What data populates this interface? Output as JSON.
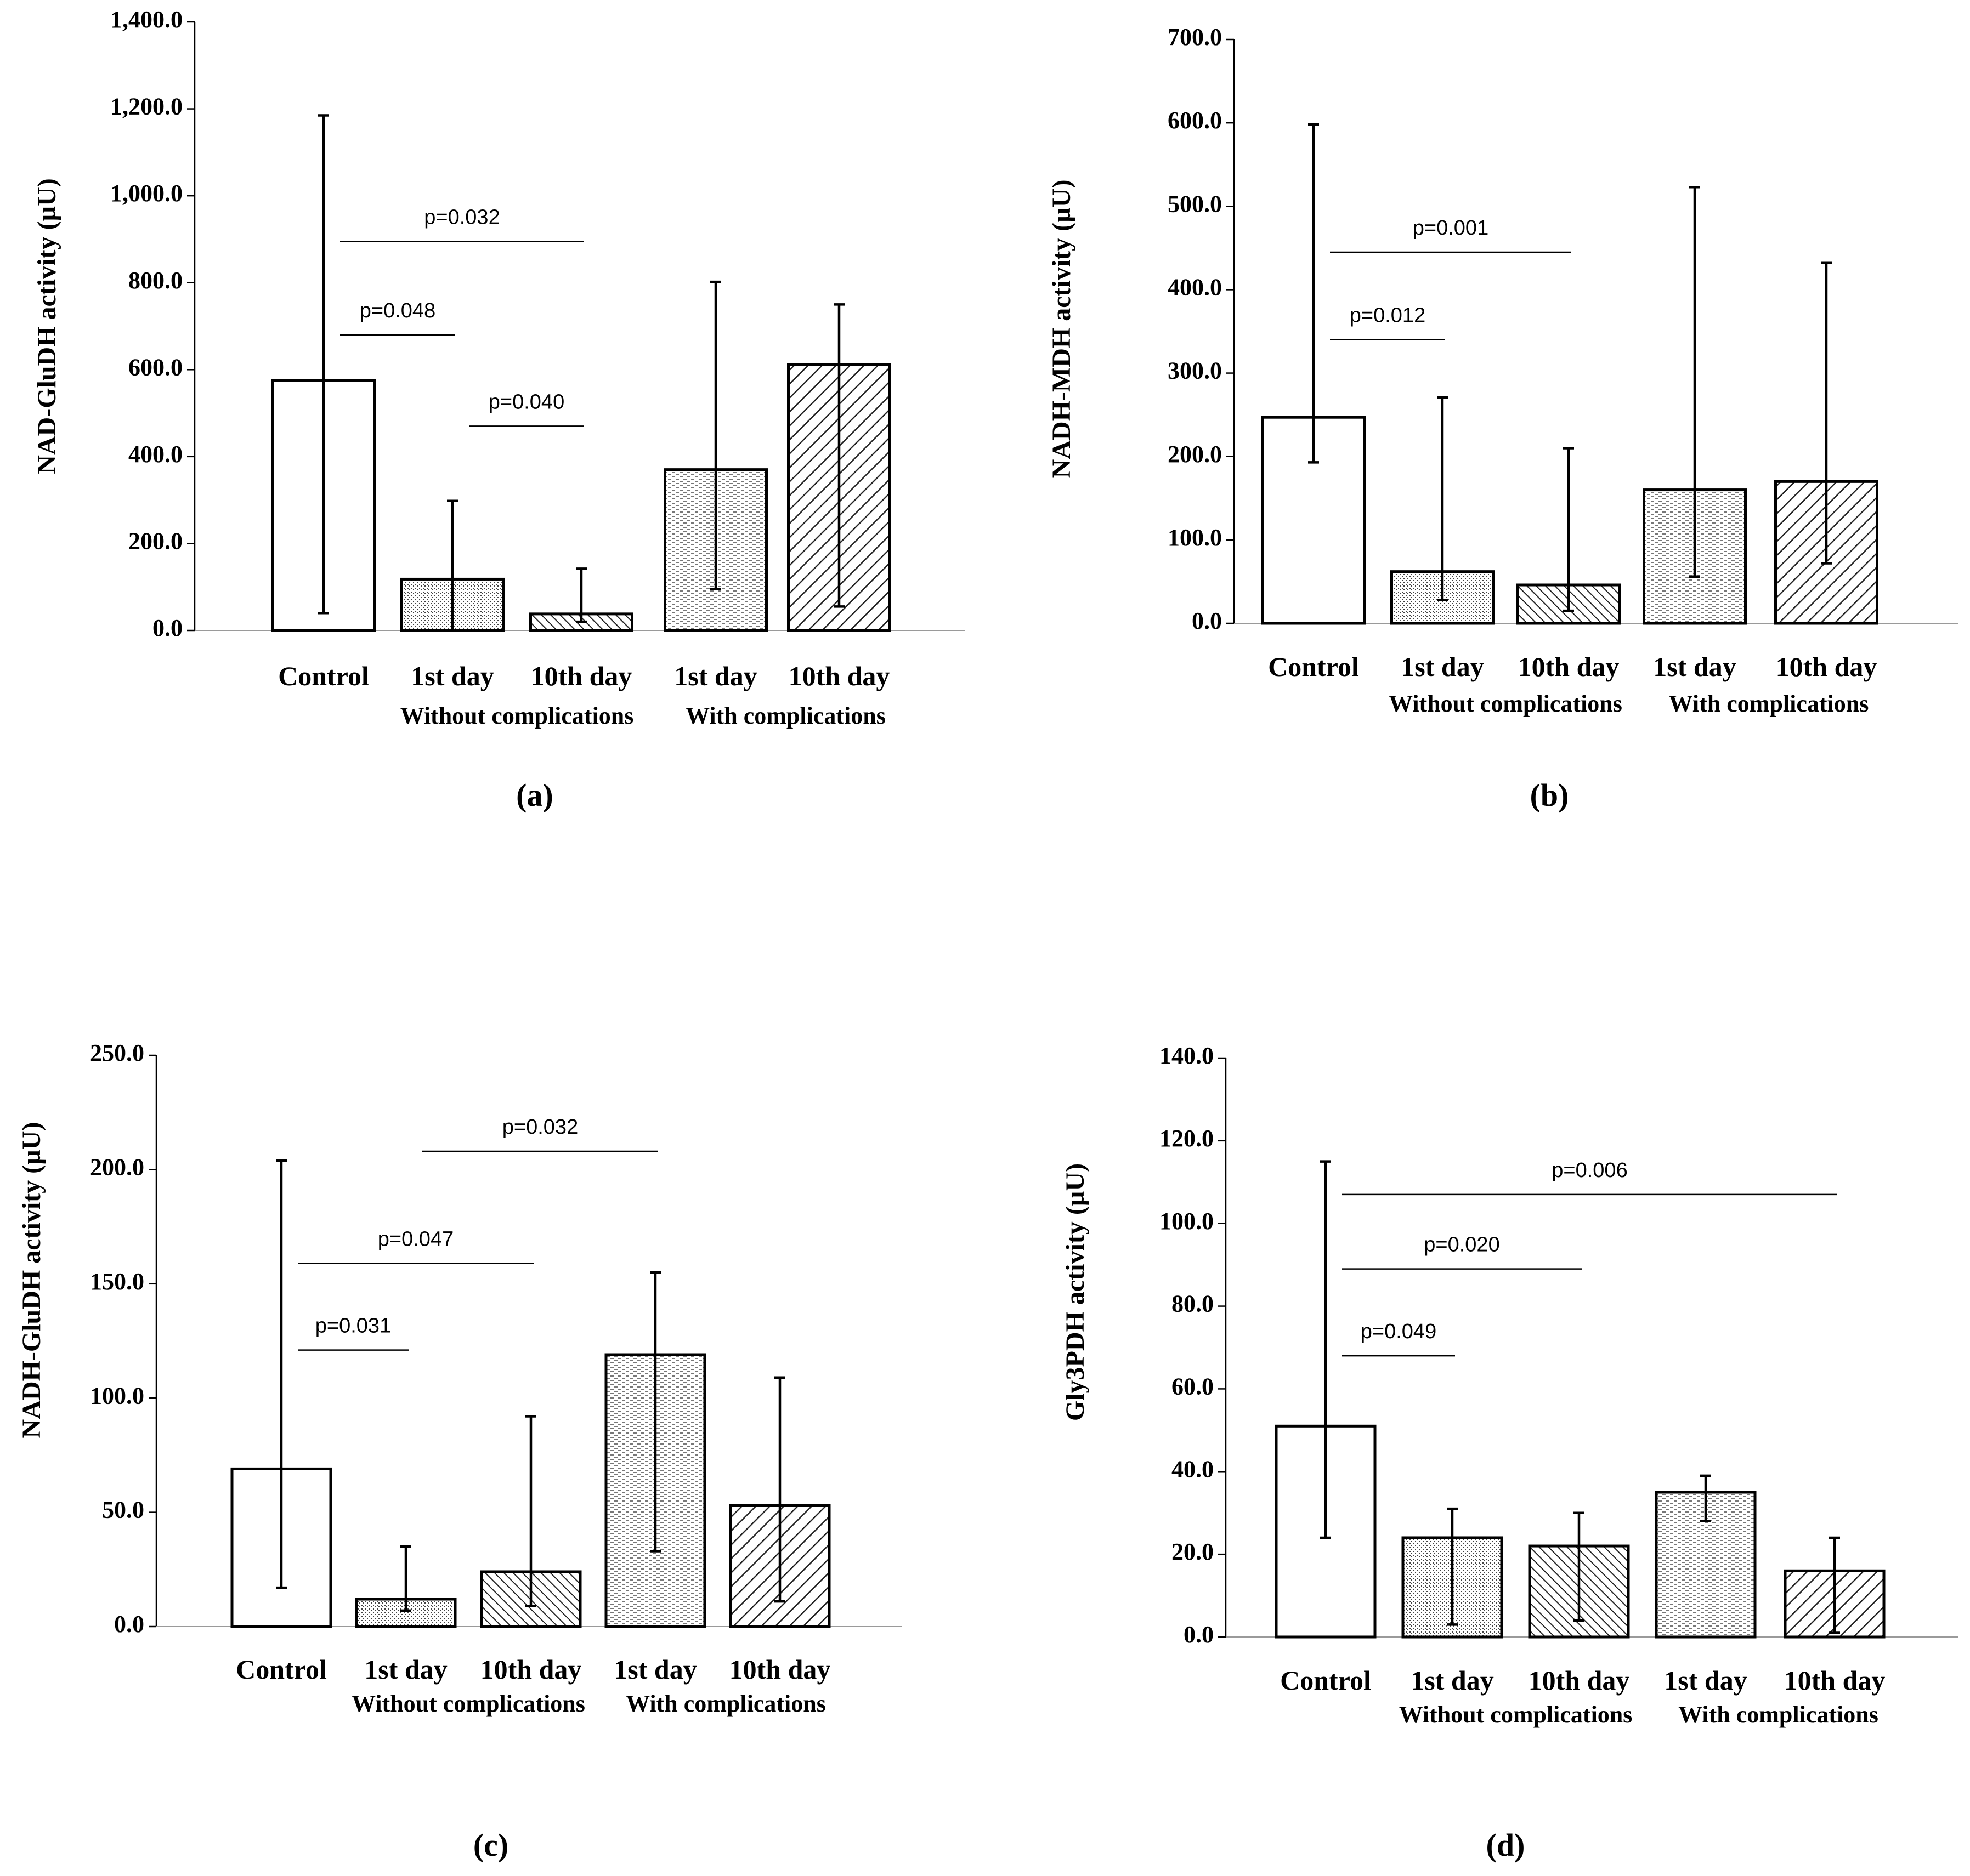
{
  "figure_labels": {
    "categories": [
      "Control",
      "1st day",
      "10th day",
      "1st day",
      "10th day"
    ],
    "group_without": "Without  complications",
    "group_with": "With complications"
  },
  "chart_data": [
    {
      "id": "a",
      "type": "bar",
      "panel_label": "(a)",
      "ylabel": "NAD-GluDH activity (µU)",
      "ylim": [
        0,
        1400
      ],
      "yticks": [
        0,
        200,
        400,
        600,
        800,
        1000,
        1200,
        1400
      ],
      "ytick_labels": [
        "0.0",
        "200.0",
        "400.0",
        "600.0",
        "800.0",
        "1,000.0",
        "1,200.0",
        "1,400.0"
      ],
      "categories": [
        "Control",
        "1st day",
        "10th day",
        "1st day",
        "10th day"
      ],
      "values": [
        575,
        118,
        38,
        370,
        612
      ],
      "err_low": [
        40,
        0,
        20,
        95,
        55
      ],
      "err_high": [
        1185,
        298,
        142,
        802,
        750
      ],
      "significance": [
        {
          "label": "p=0.032",
          "from": 0,
          "to": 2,
          "y": 895
        },
        {
          "label": "p=0.048",
          "from": 0,
          "to": 1,
          "y": 680
        },
        {
          "label": "p=0.040",
          "from": 1,
          "to": 2,
          "y": 470
        }
      ]
    },
    {
      "id": "b",
      "type": "bar",
      "panel_label": "(b)",
      "ylabel": "NADH-MDH activity (µU)",
      "ylim": [
        0,
        700
      ],
      "yticks": [
        0,
        100,
        200,
        300,
        400,
        500,
        600,
        700
      ],
      "ytick_labels": [
        "0.0",
        "100.0",
        "200.0",
        "300.0",
        "400.0",
        "500.0",
        "600.0",
        "700.0"
      ],
      "categories": [
        "Control",
        "1st day",
        "10th day",
        "1st day",
        "10th day"
      ],
      "values": [
        247,
        62,
        46,
        160,
        170
      ],
      "err_low": [
        193,
        28,
        15,
        56,
        72
      ],
      "err_high": [
        598,
        271,
        210,
        523,
        432
      ],
      "significance": [
        {
          "label": "p=0.001",
          "from": 0,
          "to": 2,
          "y": 445
        },
        {
          "label": "p=0.012",
          "from": 0,
          "to": 1,
          "y": 340
        }
      ]
    },
    {
      "id": "c",
      "type": "bar",
      "panel_label": "(c)",
      "ylabel": "NADH-GluDH activity (µU)",
      "ylim": [
        0,
        250
      ],
      "yticks": [
        0,
        50,
        100,
        150,
        200,
        250
      ],
      "ytick_labels": [
        "0.0",
        "50.0",
        "100.0",
        "150.0",
        "200.0",
        "250.0"
      ],
      "categories": [
        "Control",
        "1st day",
        "10th day",
        "1st day",
        "10th day"
      ],
      "values": [
        69,
        12,
        24,
        119,
        53
      ],
      "err_low": [
        17,
        7,
        9,
        33,
        11
      ],
      "err_high": [
        204,
        35,
        92,
        155,
        109
      ],
      "significance": [
        {
          "label": "p=0.032",
          "from": 1,
          "to": 3,
          "y": 208
        },
        {
          "label": "p=0.047",
          "from": 0,
          "to": 2,
          "y": 159
        },
        {
          "label": "p=0.031",
          "from": 0,
          "to": 1,
          "y": 121
        }
      ]
    },
    {
      "id": "d",
      "type": "bar",
      "panel_label": "(d)",
      "ylabel": "Gly3PDH activity (µU)",
      "ylim": [
        0,
        140
      ],
      "yticks": [
        0,
        20,
        40,
        60,
        80,
        100,
        120,
        140
      ],
      "ytick_labels": [
        "0.0",
        "20.0",
        "40.0",
        "60.0",
        "80.0",
        "100.0",
        "120.0",
        "140.0"
      ],
      "categories": [
        "Control",
        "1st day",
        "10th day",
        "1st day",
        "10th day"
      ],
      "values": [
        51,
        24,
        22,
        35,
        16
      ],
      "err_low": [
        24,
        3,
        4,
        28,
        1
      ],
      "err_high": [
        115,
        31,
        30,
        39,
        24
      ],
      "significance": [
        {
          "label": "p=0.006",
          "from": 0,
          "to": 4,
          "y": 107
        },
        {
          "label": "p=0.020",
          "from": 0,
          "to": 2,
          "y": 89
        },
        {
          "label": "p=0.049",
          "from": 0,
          "to": 1,
          "y": 68
        }
      ]
    }
  ]
}
